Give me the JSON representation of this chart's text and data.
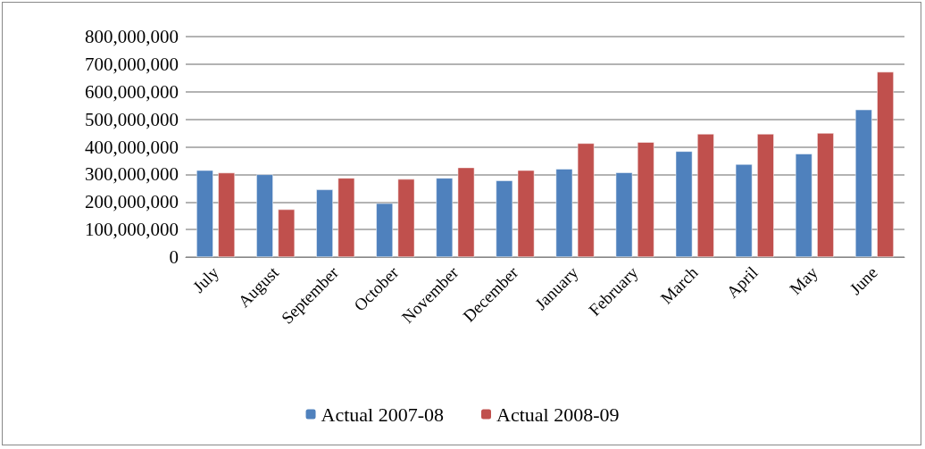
{
  "chart_data": {
    "type": "bar",
    "categories": [
      "July",
      "August",
      "September",
      "October",
      "November",
      "December",
      "January",
      "February",
      "March",
      "April",
      "May",
      "June"
    ],
    "series": [
      {
        "name": "Actual 2007-08",
        "color": "#4f81bd",
        "values": [
          315000000,
          300000000,
          245000000,
          195000000,
          287000000,
          278000000,
          320000000,
          307000000,
          384000000,
          337000000,
          375000000,
          535000000
        ]
      },
      {
        "name": "Actual 2008-09",
        "color": "#c0504d",
        "values": [
          306000000,
          173000000,
          287000000,
          283000000,
          325000000,
          315000000,
          413000000,
          417000000,
          447000000,
          447000000,
          450000000,
          672000000
        ]
      }
    ],
    "ylim": [
      0,
      800000000
    ],
    "yticks": [
      0,
      {
        "value": 100000000,
        "label": "100,000,000"
      },
      {
        "value": 200000000,
        "label": "200,000,000"
      },
      {
        "value": 300000000,
        "label": "300,000,000"
      },
      {
        "value": 400000000,
        "label": "400,000,000"
      },
      {
        "value": 500000000,
        "label": "500,000,000"
      },
      {
        "value": 600000000,
        "label": "600,000,000"
      },
      {
        "value": 700000000,
        "label": "700,000,000"
      },
      {
        "value": 800000000,
        "label": "800,000,000"
      }
    ],
    "grid": "y",
    "legend": "bottom"
  }
}
